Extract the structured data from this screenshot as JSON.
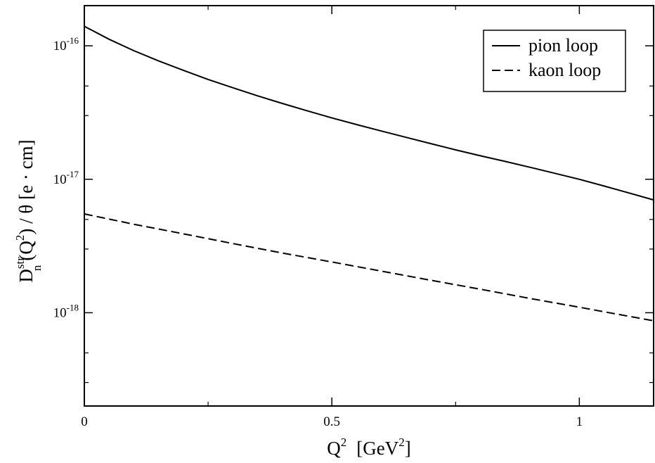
{
  "chart_data": {
    "type": "line",
    "xlabel": {
      "base": "Q",
      "sup": "2",
      "unit_open": "[GeV",
      "unit_sup": "2",
      "unit_close": "]"
    },
    "ylabel": {
      "main": "D",
      "sup": "str",
      "sub": "n",
      "arg_open": "(Q",
      "arg_sup": "2",
      "rest": ") / θ  [e · cm]"
    },
    "x_range": [
      0,
      1.15
    ],
    "y_range": [
      2e-19,
      2e-16
    ],
    "y_scale": "log",
    "x_ticks": [
      {
        "value": 0,
        "label": "0"
      },
      {
        "value": 0.5,
        "label": "0.5"
      },
      {
        "value": 1,
        "label": "1"
      }
    ],
    "x_minor_ticks": [
      0.25,
      0.75
    ],
    "y_ticks": [
      {
        "value": 1e-18,
        "base": "10",
        "exp": "-18"
      },
      {
        "value": 1e-17,
        "base": "10",
        "exp": "-17"
      },
      {
        "value": 1e-16,
        "base": "10",
        "exp": "-16"
      }
    ],
    "y_minor_ticks": [
      3e-19,
      5e-19,
      3e-18,
      5e-18,
      3e-17,
      5e-17
    ],
    "legend_position": "top-right",
    "series": [
      {
        "name": "pion loop",
        "style": "solid",
        "x": [
          0,
          0.05,
          0.1,
          0.15,
          0.2,
          0.25,
          0.3,
          0.35,
          0.4,
          0.45,
          0.5,
          0.55,
          0.6,
          0.65,
          0.7,
          0.75,
          0.8,
          0.85,
          0.9,
          0.95,
          1.0,
          1.05,
          1.1,
          1.15
        ],
        "y": [
          1.4e-16,
          1.12e-16,
          9.2e-17,
          7.7e-17,
          6.55e-17,
          5.6e-17,
          4.85e-17,
          4.22e-17,
          3.7e-17,
          3.26e-17,
          2.88e-17,
          2.57e-17,
          2.3e-17,
          2.06e-17,
          1.85e-17,
          1.66e-17,
          1.5e-17,
          1.36e-17,
          1.23e-17,
          1.11e-17,
          1e-17,
          8.9e-18,
          7.9e-18,
          7e-18
        ]
      },
      {
        "name": "kaon loop",
        "style": "dashed",
        "x": [
          0,
          0.1,
          0.2,
          0.3,
          0.4,
          0.5,
          0.6,
          0.7,
          0.8,
          0.9,
          1.0,
          1.1,
          1.15
        ],
        "y": [
          5.5e-18,
          4.6e-18,
          3.9e-18,
          3.3e-18,
          2.8e-18,
          2.4e-18,
          2.05e-18,
          1.75e-18,
          1.5e-18,
          1.28e-18,
          1.1e-18,
          9.4e-19,
          8.7e-19
        ]
      }
    ]
  }
}
